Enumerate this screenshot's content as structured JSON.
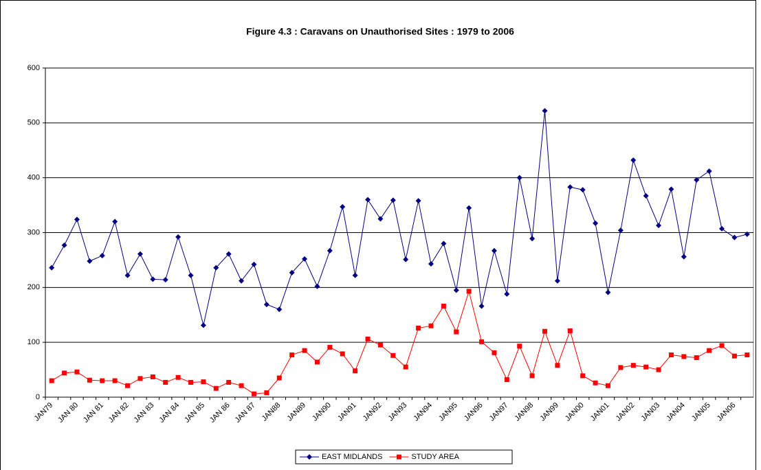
{
  "chart_data": {
    "type": "line",
    "title": "Figure 4.3 : Caravans on Unauthorised Sites : 1979 to 2006",
    "categories": [
      "JAN79",
      null,
      "JAN 80",
      null,
      "JAN 81",
      null,
      "JAN 82",
      null,
      "JAN 83",
      null,
      "JAN 84",
      null,
      "JAN 85",
      null,
      "JAN 86",
      null,
      "JAN 87",
      null,
      "JAN88",
      null,
      "JAN89",
      null,
      "JAN90",
      null,
      "JAN91",
      null,
      "JAN92",
      null,
      "JAN93",
      null,
      "JAN94",
      null,
      "JAN95",
      null,
      "JAN96",
      null,
      "JAN97",
      null,
      "JAN98",
      null,
      "JAN99",
      null,
      "JAN00",
      null,
      "JAN01",
      null,
      "JAN02",
      null,
      "JAN03",
      null,
      "JAN04",
      null,
      "JAN05",
      null,
      "JAN06",
      null
    ],
    "series": [
      {
        "name": "EAST MIDLANDS",
        "color": "#000080",
        "marker": "diamond",
        "values": [
          236,
          277,
          324,
          248,
          258,
          320,
          222,
          261,
          215,
          214,
          292,
          222,
          131,
          236,
          261,
          212,
          242,
          169,
          160,
          227,
          252,
          202,
          267,
          347,
          222,
          360,
          325,
          359,
          251,
          358,
          243,
          280,
          195,
          345,
          166,
          267,
          188,
          400,
          289,
          522,
          212,
          383,
          378,
          317,
          191,
          304,
          432,
          367,
          313,
          379,
          256,
          396,
          412,
          307,
          291,
          297
        ]
      },
      {
        "name": "STUDY AREA",
        "color": "#ff0000",
        "marker": "square",
        "values": [
          30,
          44,
          46,
          31,
          30,
          30,
          21,
          34,
          37,
          27,
          36,
          27,
          28,
          16,
          27,
          21,
          6,
          8,
          35,
          77,
          85,
          64,
          91,
          79,
          48,
          106,
          95,
          76,
          55,
          126,
          130,
          166,
          119,
          193,
          101,
          81,
          32,
          93,
          39,
          120,
          58,
          121,
          39,
          26,
          21,
          54,
          58,
          55,
          50,
          77,
          74,
          72,
          85,
          94,
          75,
          77
        ]
      }
    ],
    "ylim": [
      0,
      600
    ],
    "yticks": [
      0,
      100,
      200,
      300,
      400,
      500,
      600
    ],
    "grid": true,
    "legend": "bottom"
  }
}
